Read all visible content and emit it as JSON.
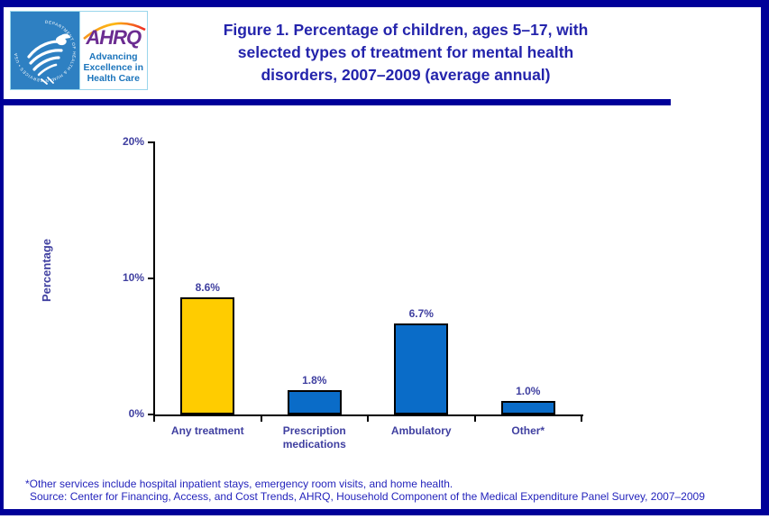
{
  "header": {
    "logo": {
      "hhs_seal_text": "DEPARTMENT OF HEALTH & HUMAN SERVICES • USA",
      "ahrq_acronym": "AHRQ",
      "ahrq_tagline": "Advancing Excellence in Health Care"
    },
    "title_lines": [
      "Figure 1. Percentage of children, ages 5–17, with",
      "selected types of treatment for mental health",
      "disorders, 2007–2009 (average annual)"
    ]
  },
  "chart_data": {
    "type": "bar",
    "title": "Figure 1. Percentage of children, ages 5–17, with selected types of treatment for mental health disorders, 2007–2009 (average annual)",
    "categories": [
      "Any treatment",
      "Prescription medications",
      "Ambulatory",
      "Other*"
    ],
    "values": [
      8.6,
      1.8,
      6.7,
      1.0
    ],
    "value_labels": [
      "8.6%",
      "1.8%",
      "6.7%",
      "1.0%"
    ],
    "xlabel": "",
    "ylabel": "Percentage",
    "ylim": [
      0,
      20
    ],
    "yticks": [
      {
        "value": 0,
        "label": "0%"
      },
      {
        "value": 10,
        "label": "10%"
      },
      {
        "value": 20,
        "label": "20%"
      }
    ],
    "bar_colors": [
      "#FFCC00",
      "#0A6CC8",
      "#0A6CC8",
      "#0A6CC8"
    ],
    "grid": false,
    "legend": false
  },
  "footnotes": {
    "note": "*Other services include hospital inpatient stays, emergency room visits, and home health.",
    "source": "Source: Center for Financing, Access, and Cost Trends, AHRQ, Household Component of the Medical Expenditure Panel Survey, 2007–2009"
  },
  "colors": {
    "frame_border": "#000099",
    "title_text": "#2424AC",
    "axis_text": "#3F3FA0",
    "footnote_text": "#2424BC",
    "bar_gold": "#FFCC00",
    "bar_blue": "#0A6CC8",
    "hhs_blue": "#2E80C2",
    "ahrq_purple": "#6B2C91",
    "tagline_blue": "#1C75BC"
  }
}
